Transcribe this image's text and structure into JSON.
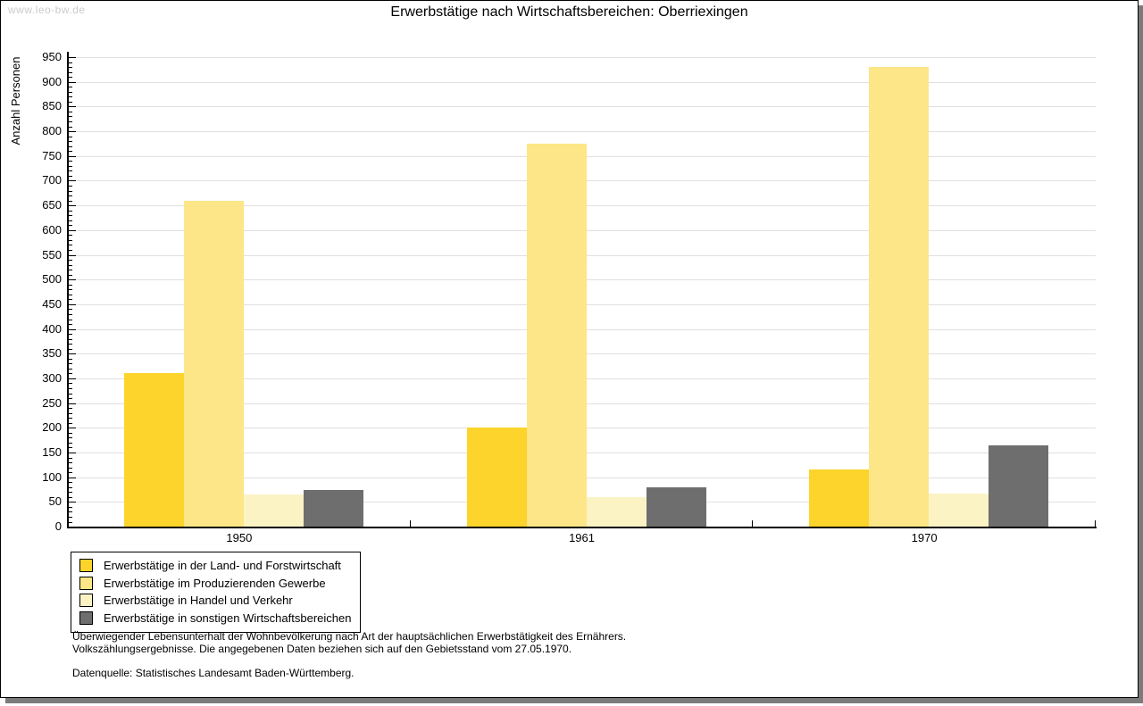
{
  "watermark": "www.leo-bw.de",
  "chart_data": {
    "type": "bar",
    "title": "Erwerbstätige nach Wirtschaftsbereichen: Oberriexingen",
    "ylabel": "Anzahl Personen",
    "xlabel": "",
    "categories": [
      "1950",
      "1961",
      "1970"
    ],
    "series": [
      {
        "name": "Erwerbstätige in der Land- und Forstwirtschaft",
        "color": "#FCD42B",
        "values": [
          310,
          200,
          115
        ]
      },
      {
        "name": "Erwerbstätige im Produzierenden Gewerbe",
        "color": "#FCE687",
        "values": [
          660,
          775,
          930
        ]
      },
      {
        "name": "Erwerbstätige in Handel und Verkehr",
        "color": "#FCF3C5",
        "values": [
          65,
          60,
          67
        ]
      },
      {
        "name": "Erwerbstätige in sonstigen Wirtschaftsbereichen",
        "color": "#6E6E6E",
        "values": [
          75,
          80,
          165
        ]
      }
    ],
    "ylim": [
      0,
      950
    ],
    "ytick_step": 50,
    "minor_tick_step": 10,
    "grid": "horizontal",
    "legend_position": "bottom-left"
  },
  "footnote": {
    "line1": "Überwiegender Lebensunterhalt der Wohnbevölkerung nach Art der hauptsächlichen Erwerbstätigkeit des Ernährers.",
    "line2": "Volkszählungsergebnisse. Die angegebenen Daten beziehen sich auf den Gebietsstand vom 27.05.1970.",
    "source": "Datenquelle: Statistisches Landesamt Baden-Württemberg."
  },
  "colors": {
    "grid": "#E0E0E0",
    "axis": "#000000",
    "watermark": "#CBCBCB",
    "shadow": "#7B7B7B",
    "background": "#FFFFFF"
  }
}
